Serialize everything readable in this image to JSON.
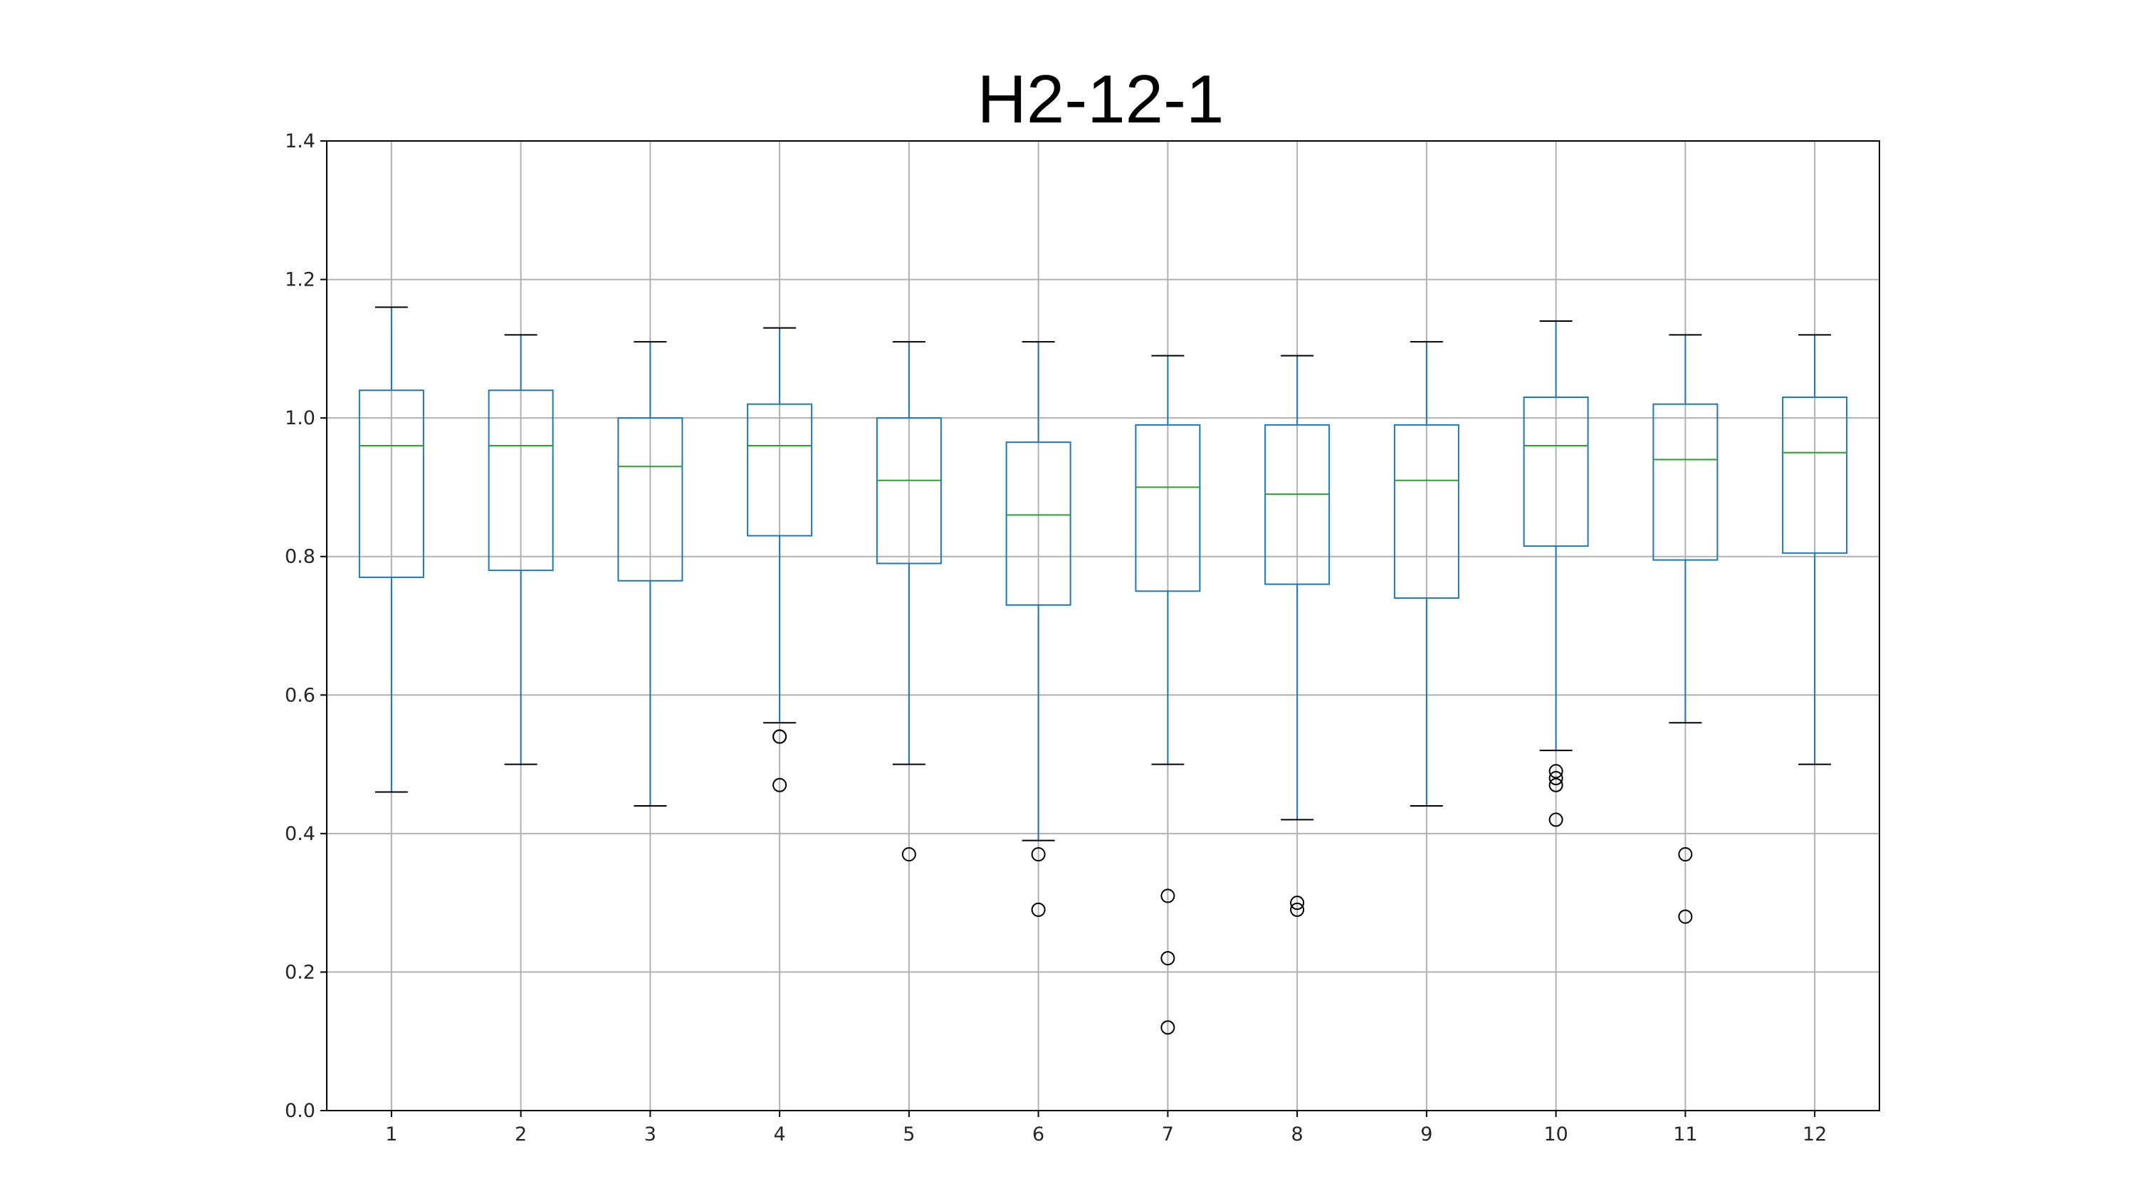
{
  "chart_data": {
    "type": "box",
    "title": "H2-12-1",
    "xlabel": "",
    "ylabel": "",
    "ylim": [
      0.0,
      1.4
    ],
    "yticks": [
      "0.0",
      "0.2",
      "0.4",
      "0.6",
      "0.8",
      "1.0",
      "1.2",
      "1.4"
    ],
    "categories": [
      "1",
      "2",
      "3",
      "4",
      "5",
      "6",
      "7",
      "8",
      "9",
      "10",
      "11",
      "12"
    ],
    "grid": true,
    "boxes": [
      {
        "whisker_low": 0.46,
        "q1": 0.77,
        "median": 0.96,
        "q3": 1.04,
        "whisker_high": 1.16,
        "outliers": []
      },
      {
        "whisker_low": 0.5,
        "q1": 0.78,
        "median": 0.96,
        "q3": 1.04,
        "whisker_high": 1.12,
        "outliers": []
      },
      {
        "whisker_low": 0.44,
        "q1": 0.765,
        "median": 0.93,
        "q3": 1.0,
        "whisker_high": 1.11,
        "outliers": []
      },
      {
        "whisker_low": 0.56,
        "q1": 0.83,
        "median": 0.96,
        "q3": 1.02,
        "whisker_high": 1.13,
        "outliers": [
          0.54,
          0.54,
          0.47
        ]
      },
      {
        "whisker_low": 0.5,
        "q1": 0.79,
        "median": 0.91,
        "q3": 1.0,
        "whisker_high": 1.11,
        "outliers": [
          0.37
        ]
      },
      {
        "whisker_low": 0.39,
        "q1": 0.73,
        "median": 0.86,
        "q3": 0.965,
        "whisker_high": 1.11,
        "outliers": [
          0.37,
          0.29
        ]
      },
      {
        "whisker_low": 0.5,
        "q1": 0.75,
        "median": 0.9,
        "q3": 0.99,
        "whisker_high": 1.09,
        "outliers": [
          0.31,
          0.22,
          0.12
        ]
      },
      {
        "whisker_low": 0.42,
        "q1": 0.76,
        "median": 0.89,
        "q3": 0.99,
        "whisker_high": 1.09,
        "outliers": [
          0.3,
          0.29
        ]
      },
      {
        "whisker_low": 0.44,
        "q1": 0.74,
        "median": 0.91,
        "q3": 0.99,
        "whisker_high": 1.11,
        "outliers": []
      },
      {
        "whisker_low": 0.52,
        "q1": 0.815,
        "median": 0.96,
        "q3": 1.03,
        "whisker_high": 1.14,
        "outliers": [
          0.49,
          0.48,
          0.47,
          0.42
        ]
      },
      {
        "whisker_low": 0.56,
        "q1": 0.795,
        "median": 0.94,
        "q3": 1.02,
        "whisker_high": 1.12,
        "outliers": [
          0.37,
          0.28
        ]
      },
      {
        "whisker_low": 0.5,
        "q1": 0.805,
        "median": 0.95,
        "q3": 1.03,
        "whisker_high": 1.12,
        "outliers": []
      }
    ],
    "colors": {
      "box": "#1f77b4",
      "median": "#2ca02c",
      "whisker_cap": "#000000",
      "outlier": "#000000",
      "grid": "#b0b0b0",
      "axes": "#000000"
    }
  }
}
